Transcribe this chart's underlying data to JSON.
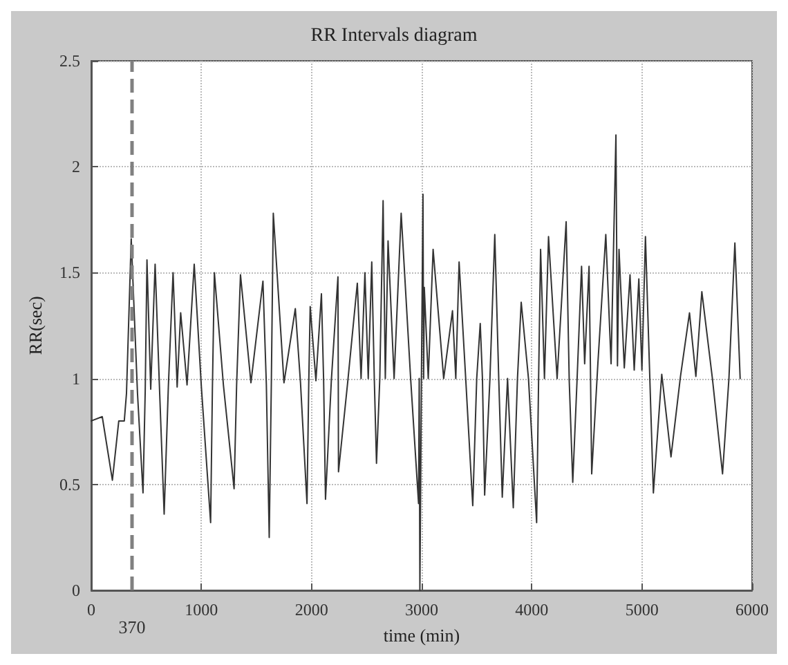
{
  "chart_data": {
    "type": "line",
    "title": "RR Intervals diagram",
    "xlabel": "time (min)",
    "ylabel": "RR(sec)",
    "xlim": [
      0,
      6000
    ],
    "xticks": [
      0,
      1000,
      2000,
      3000,
      4000,
      5000,
      6000
    ],
    "ylim": [
      0,
      2.5
    ],
    "yticks": [
      0,
      0.5,
      1,
      1.5,
      2,
      2.5
    ],
    "grid": true,
    "marker": "none",
    "line_style": "solid",
    "ref_lines": [
      {
        "axis": "x",
        "value": 370,
        "label": "370",
        "color": "#808080",
        "line_style": "dashed"
      }
    ],
    "series": [
      {
        "color": "#333333",
        "x": [
          0,
          100,
          192,
          250,
          300,
          320,
          363,
          420,
          470,
          490,
          506,
          540,
          580,
          620,
          662,
          700,
          743,
          780,
          812,
          870,
          935,
          1000,
          1084,
          1100,
          1118,
          1200,
          1297,
          1320,
          1355,
          1450,
          1559,
          1590,
          1616,
          1635,
          1653,
          1750,
          1853,
          1900,
          1959,
          1975,
          1988,
          2040,
          2090,
          2110,
          2127,
          2180,
          2240,
          2243,
          2245,
          2330,
          2416,
          2450,
          2485,
          2515,
          2547,
          2570,
          2590,
          2620,
          2650,
          2670,
          2695,
          2750,
          2814,
          2900,
          2972,
          2978,
          2984,
          2998,
          3012,
          3018,
          3024,
          3060,
          3104,
          3200,
          3280,
          3310,
          3340,
          3400,
          3464,
          3500,
          3532,
          3552,
          3572,
          3620,
          3664,
          3700,
          3732,
          3780,
          3832,
          3870,
          3904,
          3970,
          4044,
          4062,
          4080,
          4115,
          4152,
          4230,
          4312,
          4340,
          4372,
          4410,
          4452,
          4480,
          4520,
          4532,
          4544,
          4600,
          4672,
          4720,
          4764,
          4778,
          4792,
          4840,
          4892,
          4930,
          4972,
          5000,
          5032,
          5070,
          5104,
          5180,
          5264,
          5350,
          5432,
          5490,
          5544,
          5640,
          5732,
          5790,
          5844,
          5892
        ],
        "values": [
          0.8,
          0.82,
          0.52,
          0.8,
          0.8,
          0.93,
          1.66,
          0.93,
          0.46,
          0.94,
          1.56,
          0.95,
          1.54,
          0.95,
          0.36,
          0.96,
          1.5,
          0.96,
          1.31,
          0.97,
          1.54,
          0.96,
          0.32,
          0.95,
          1.5,
          0.97,
          0.48,
          0.97,
          1.49,
          0.98,
          1.46,
          0.97,
          0.25,
          0.97,
          1.78,
          0.98,
          1.33,
          0.98,
          0.41,
          0.98,
          1.34,
          0.99,
          1.4,
          0.99,
          0.43,
          0.99,
          1.48,
          0.99,
          0.56,
          0.99,
          1.45,
          1.0,
          1.5,
          1.0,
          1.55,
          1.0,
          0.6,
          1.0,
          1.84,
          1.0,
          1.65,
          1.0,
          1.78,
          1.0,
          0.41,
          1.0,
          0.0,
          1.0,
          1.87,
          1.0,
          1.43,
          1.0,
          1.61,
          1.0,
          1.32,
          1.0,
          1.55,
          1.0,
          0.4,
          1.0,
          1.26,
          1.0,
          0.45,
          1.0,
          1.68,
          1.0,
          0.44,
          1.0,
          0.39,
          1.0,
          1.36,
          1.0,
          0.32,
          1.0,
          1.61,
          1.0,
          1.67,
          1.0,
          1.74,
          0.99,
          0.51,
          0.98,
          1.53,
          1.07,
          1.53,
          1.07,
          0.55,
          1.07,
          1.68,
          1.07,
          2.15,
          1.06,
          1.61,
          1.05,
          1.49,
          1.04,
          1.47,
          1.04,
          1.67,
          1.03,
          0.46,
          1.02,
          0.63,
          1.01,
          1.31,
          1.01,
          1.41,
          1.0,
          0.55,
          1.0,
          1.64,
          1.0
        ]
      }
    ]
  }
}
